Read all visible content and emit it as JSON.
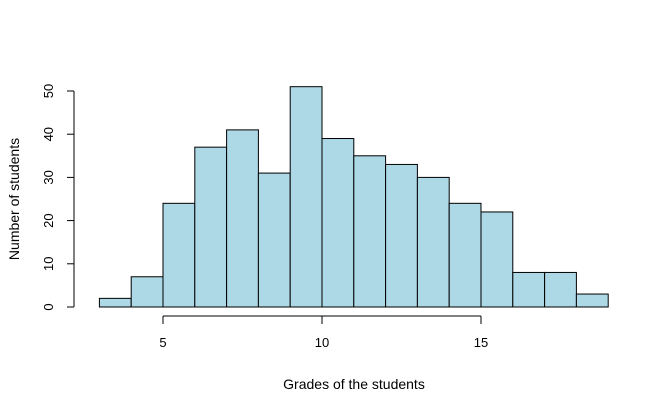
{
  "chart_data": {
    "type": "bar",
    "subtype": "histogram",
    "title": "",
    "xlabel": "Grades of the students",
    "ylabel": "Number of students",
    "bin_edges": [
      3,
      4,
      5,
      6,
      7,
      8,
      9,
      10,
      11,
      12,
      13,
      14,
      15,
      16,
      17,
      18,
      19
    ],
    "categories": [
      "3-4",
      "4-5",
      "5-6",
      "6-7",
      "7-8",
      "8-9",
      "9-10",
      "10-11",
      "11-12",
      "12-13",
      "13-14",
      "14-15",
      "15-16",
      "16-17",
      "17-18",
      "18-19"
    ],
    "values": [
      2,
      7,
      24,
      37,
      41,
      31,
      51,
      39,
      35,
      33,
      30,
      24,
      22,
      8,
      8,
      3
    ],
    "xticks": [
      5,
      10,
      15
    ],
    "yticks": [
      0,
      10,
      20,
      30,
      40,
      50
    ],
    "xlim": [
      3,
      19
    ],
    "ylim": [
      0,
      51
    ],
    "grid": false,
    "legend": null,
    "bar_color": "#ADD8E6",
    "edge_color": "#000000"
  }
}
